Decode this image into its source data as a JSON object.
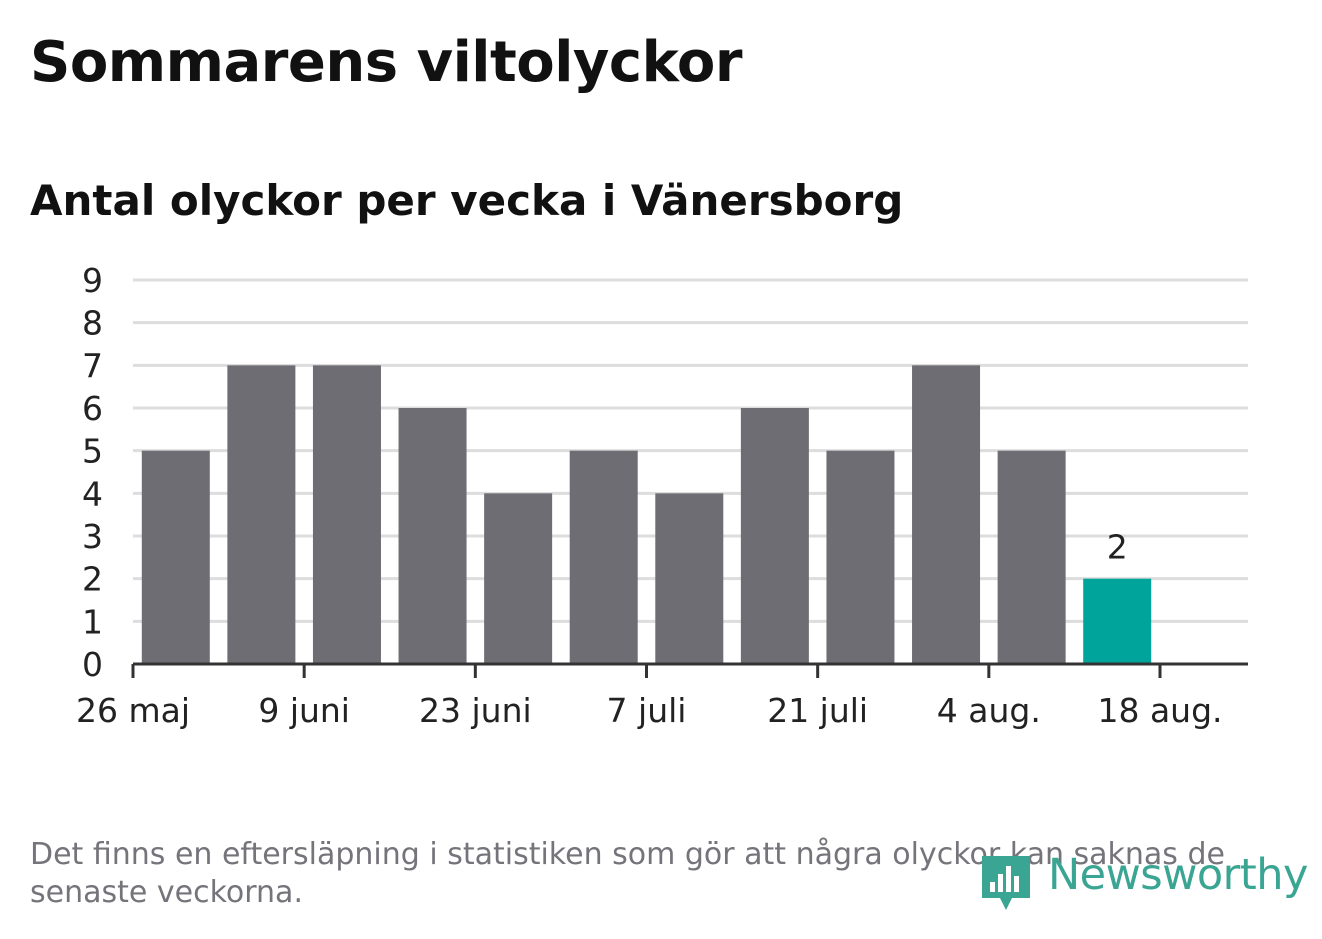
{
  "title": "Sommarens viltolyckor",
  "subtitle": "Antal olyckor per vecka i Vänersborg",
  "footnote": "Det finns en eftersläpning i statistiken som gör att några olyckor kan saknas de senaste veckorna.",
  "logo_text": "Newsworthy",
  "colors": {
    "bar": "#6e6d73",
    "highlight": "#00a49a",
    "grid": "#dddddd",
    "axis": "#333333",
    "logo": "#3aa592"
  },
  "chart_data": {
    "type": "bar",
    "x": [
      "2019-06-02",
      "2019-06-09",
      "2019-06-16",
      "2019-06-23",
      "2019-06-30",
      "2019-07-07",
      "2019-07-14",
      "2019-07-21",
      "2019-07-28",
      "2019-08-04",
      "2019-08-11",
      "2019-08-18"
    ],
    "values": [
      5,
      7,
      7,
      6,
      4,
      5,
      4,
      6,
      5,
      7,
      5,
      2
    ],
    "highlight_index": 11,
    "data_labels": [
      {
        "index": 11,
        "text": "2"
      }
    ],
    "x_ticks": [
      "26 maj",
      "9 juni",
      "23 juni",
      "7 juli",
      "21 juli",
      "4 aug.",
      "18 aug."
    ],
    "y_ticks": [
      0,
      1,
      2,
      3,
      4,
      5,
      6,
      7,
      8,
      9
    ],
    "ylim": [
      0,
      9
    ],
    "grid": true,
    "title": "Sommarens viltolyckor",
    "subtitle": "Antal olyckor per vecka i Vänersborg",
    "xlabel": "",
    "ylabel": ""
  }
}
